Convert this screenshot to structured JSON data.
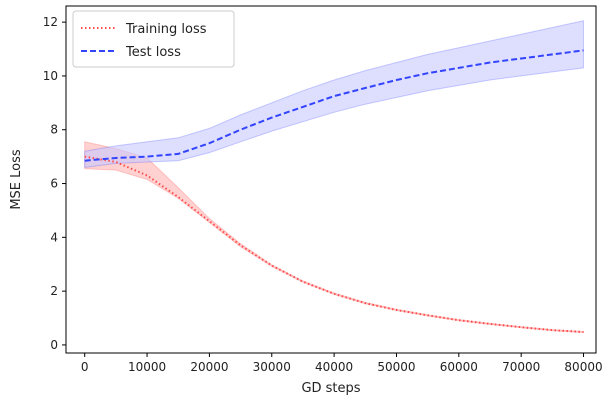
{
  "chart_data": {
    "type": "line",
    "xlabel": "GD steps",
    "ylabel": "MSE Loss",
    "xlim": [
      -3000,
      82000
    ],
    "ylim": [
      -0.3,
      12.6
    ],
    "xticks": [
      0,
      10000,
      20000,
      30000,
      40000,
      50000,
      60000,
      70000,
      80000
    ],
    "yticks": [
      0,
      2,
      4,
      6,
      8,
      10,
      12
    ],
    "grid": false,
    "legend_position": "top-left",
    "series": [
      {
        "name": "Training loss",
        "color": "#ff4d4d",
        "band_color": "#ffb3b3",
        "style": "dotted",
        "x": [
          0,
          5000,
          10000,
          15000,
          20000,
          25000,
          30000,
          35000,
          40000,
          45000,
          50000,
          55000,
          60000,
          65000,
          70000,
          75000,
          80000
        ],
        "y": [
          7.0,
          6.8,
          6.3,
          5.5,
          4.6,
          3.7,
          2.95,
          2.35,
          1.9,
          1.55,
          1.3,
          1.1,
          0.92,
          0.78,
          0.66,
          0.55,
          0.48
        ],
        "lower": [
          6.55,
          6.5,
          6.15,
          5.45,
          4.55,
          3.65,
          2.92,
          2.33,
          1.88,
          1.53,
          1.28,
          1.08,
          0.9,
          0.76,
          0.64,
          0.53,
          0.46
        ],
        "upper": [
          7.55,
          7.3,
          6.95,
          5.85,
          4.7,
          3.76,
          2.98,
          2.38,
          1.93,
          1.58,
          1.33,
          1.12,
          0.94,
          0.8,
          0.68,
          0.57,
          0.5
        ]
      },
      {
        "name": "Test loss",
        "color": "#3344ff",
        "band_color": "#c8c8ff",
        "style": "dashed",
        "x": [
          0,
          5000,
          10000,
          15000,
          20000,
          25000,
          30000,
          35000,
          40000,
          45000,
          50000,
          55000,
          60000,
          65000,
          70000,
          75000,
          80000
        ],
        "y": [
          6.85,
          6.95,
          7.0,
          7.1,
          7.5,
          8.0,
          8.45,
          8.85,
          9.25,
          9.55,
          9.85,
          10.1,
          10.3,
          10.5,
          10.65,
          10.8,
          10.95
        ],
        "lower": [
          6.6,
          6.75,
          6.8,
          6.85,
          7.15,
          7.55,
          7.95,
          8.3,
          8.65,
          8.95,
          9.2,
          9.45,
          9.65,
          9.85,
          10.0,
          10.15,
          10.3
        ],
        "upper": [
          7.2,
          7.4,
          7.55,
          7.7,
          8.05,
          8.55,
          9.0,
          9.45,
          9.85,
          10.2,
          10.5,
          10.8,
          11.05,
          11.3,
          11.55,
          11.8,
          12.05
        ]
      }
    ]
  }
}
